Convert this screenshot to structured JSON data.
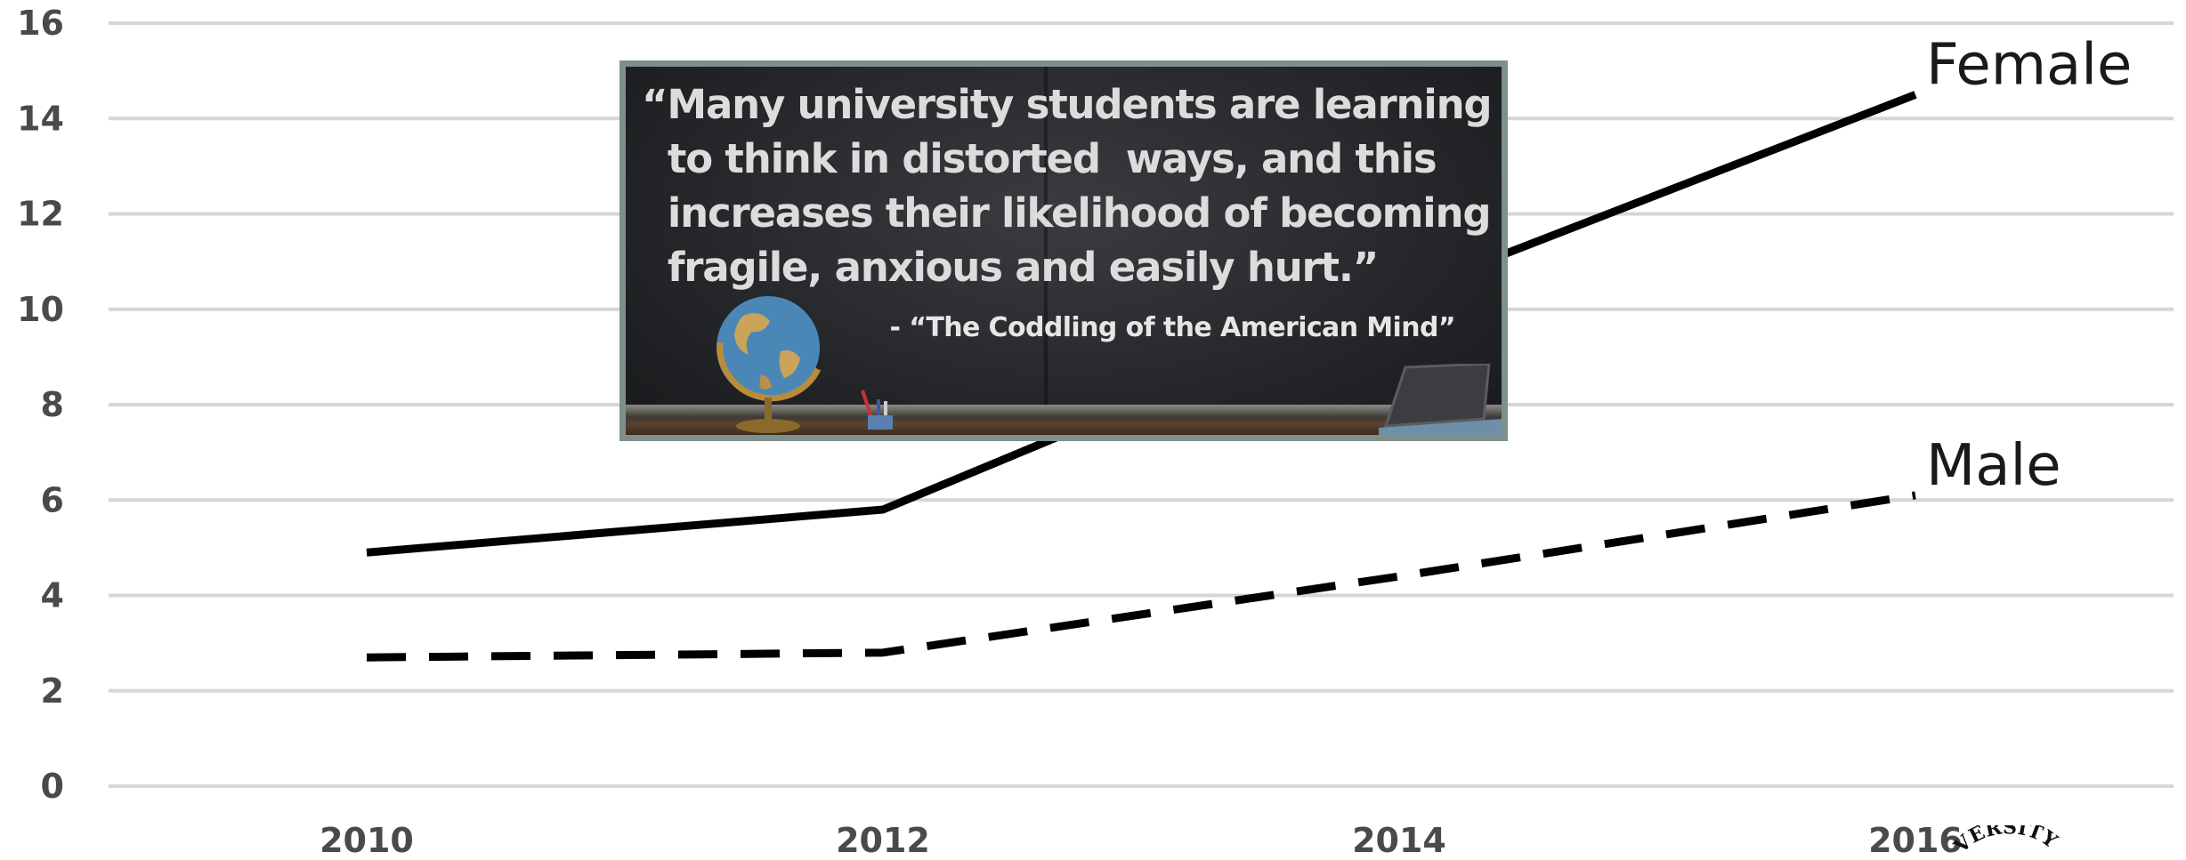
{
  "chart_data": {
    "type": "line",
    "title": "",
    "xlabel": "",
    "ylabel": "",
    "x": [
      2010,
      2012,
      2014,
      2016
    ],
    "x_tick_labels": [
      "2010",
      "2012",
      "2014",
      "2016"
    ],
    "y_tick_labels": [
      "0",
      "2",
      "4",
      "6",
      "8",
      "10",
      "12",
      "14",
      "16"
    ],
    "ylim": [
      0,
      16
    ],
    "grid": "horizontal",
    "series": [
      {
        "name": "Female",
        "style": "solid",
        "color": "#000000",
        "values": [
          4.9,
          5.8,
          10.3,
          14.5
        ]
      },
      {
        "name": "Male",
        "style": "dashed",
        "color": "#000000",
        "values": [
          2.7,
          2.8,
          4.4,
          6.1
        ]
      }
    ],
    "legend": "direct labels at line ends"
  },
  "overlay": {
    "quote": "“Many university students are learning\n  to think in distorted  ways, and this\n  increases their likelihood of becoming\n  fragile, anxious and easily hurt.”",
    "attribution": "- “The Coddling of the American Mind”",
    "colors": {
      "border": "#7e8f8c",
      "chalkboard": "#26282b",
      "text": "#dcdcdc"
    },
    "icons": [
      "globe-icon",
      "pencil-cup-icon",
      "laptop-icon"
    ]
  },
  "logo": {
    "text": "VERSITY"
  }
}
